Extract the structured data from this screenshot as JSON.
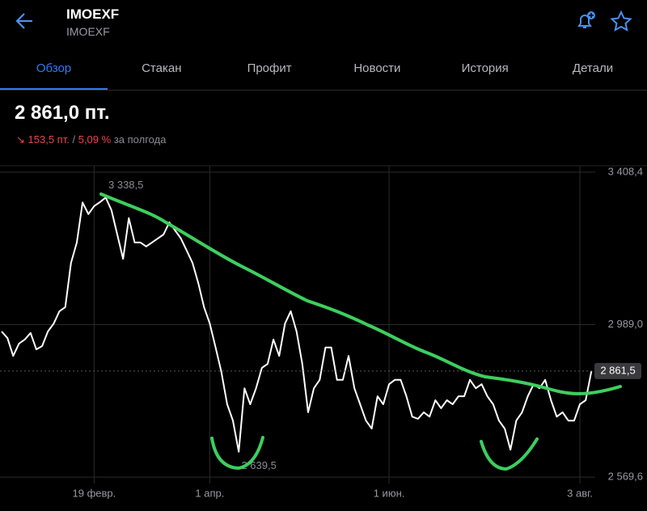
{
  "header": {
    "title": "IMOEXF",
    "subtitle": "IMOEXF"
  },
  "tabs": [
    "Обзор",
    "Стакан",
    "Профит",
    "Новости",
    "История",
    "Детали"
  ],
  "quote": {
    "price": "2 861,0 пт.",
    "change": "153,5 пт.",
    "separator": "/",
    "change_percent": "5,09 %",
    "period": "за полгода"
  },
  "chart_data": {
    "type": "line",
    "categories": [
      null,
      null,
      null,
      null,
      null,
      null,
      null,
      null,
      null,
      null,
      null,
      null,
      null,
      null,
      null,
      null,
      "19 февр.",
      null,
      null,
      null,
      null,
      null,
      null,
      null,
      null,
      null,
      null,
      null,
      null,
      null,
      null,
      null,
      null,
      null,
      null,
      null,
      "1 апр.",
      null,
      null,
      null,
      null,
      null,
      null,
      null,
      null,
      null,
      null,
      null,
      null,
      null,
      null,
      null,
      null,
      null,
      null,
      null,
      null,
      null,
      null,
      null,
      null,
      null,
      null,
      null,
      null,
      null,
      null,
      "1 июн.",
      null,
      null,
      null,
      null,
      null,
      null,
      null,
      null,
      null,
      null,
      null,
      null,
      null,
      null,
      null,
      null,
      null,
      null,
      null,
      null,
      null,
      null,
      null,
      null,
      null,
      null,
      null,
      null,
      null,
      null,
      null,
      null,
      "3 авг.",
      null,
      null
    ],
    "series": [
      {
        "name": "IMOEXF",
        "color": "#ffffff",
        "values": [
          2970,
          2952,
          2903,
          2937,
          2948,
          2966,
          2921,
          2930,
          2970,
          2992,
          3026,
          3037,
          3159,
          3215,
          3325,
          3293,
          3315,
          3326,
          3338.5,
          3304,
          3237,
          3170,
          3282,
          3215,
          3215,
          3204,
          3215,
          3226,
          3237,
          3270,
          3248,
          3226,
          3193,
          3159,
          3104,
          3037,
          2992,
          2926,
          2859,
          2770,
          2725,
          2639.5,
          2814,
          2770,
          2814,
          2870,
          2881,
          2948,
          2903,
          2992,
          3026,
          2970,
          2881,
          2748,
          2814,
          2837,
          2926,
          2926,
          2837,
          2837,
          2903,
          2814,
          2770,
          2725,
          2703,
          2792,
          2770,
          2825,
          2837,
          2837,
          2792,
          2736,
          2730,
          2748,
          2736,
          2781,
          2759,
          2781,
          2770,
          2792,
          2792,
          2837,
          2814,
          2825,
          2792,
          2770,
          2725,
          2703,
          2645,
          2725,
          2748,
          2792,
          2825,
          2814,
          2837,
          2781,
          2736,
          2748,
          2725,
          2725,
          2770,
          2781,
          2861.5
        ]
      }
    ],
    "ylim": [
      2552,
      3426
    ],
    "yticks": [
      {
        "value": 2569.6,
        "label": "2 569,6"
      },
      {
        "value": 2989.0,
        "label": "2 989,0"
      },
      {
        "value": 3408.4,
        "label": "3 408,4"
      }
    ],
    "grid": true,
    "annotations": [
      {
        "label": "3 338,5",
        "value": 3338.5
      },
      {
        "label": "2 639,5",
        "value": 2639.5
      },
      {
        "label": "2 861,5",
        "value": 2861.5
      }
    ]
  }
}
